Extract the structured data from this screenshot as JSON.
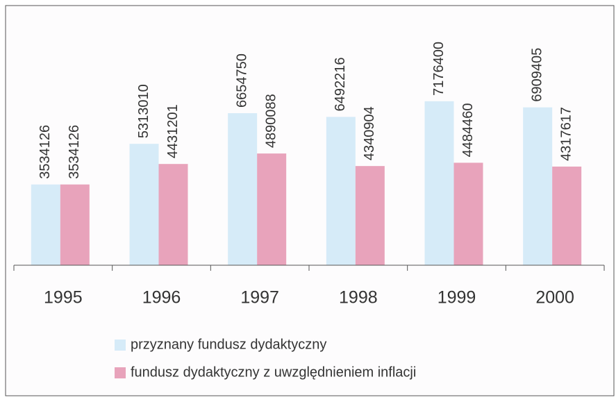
{
  "chart_data": {
    "type": "bar",
    "categories": [
      "1995",
      "1996",
      "1997",
      "1998",
      "1999",
      "2000"
    ],
    "series": [
      {
        "name": "przyznany fundusz dydaktyczny",
        "color": "#d6ebf8",
        "values": [
          3534126,
          5313010,
          6654750,
          6492216,
          7176400,
          6909405
        ]
      },
      {
        "name": "fundusz dydaktyczny z uwzględnieniem inflacji",
        "color": "#e8a3bb",
        "values": [
          3534126,
          4431201,
          4890088,
          4340904,
          4484460,
          4317617
        ]
      }
    ],
    "ylim": [
      0,
      11000000
    ]
  }
}
